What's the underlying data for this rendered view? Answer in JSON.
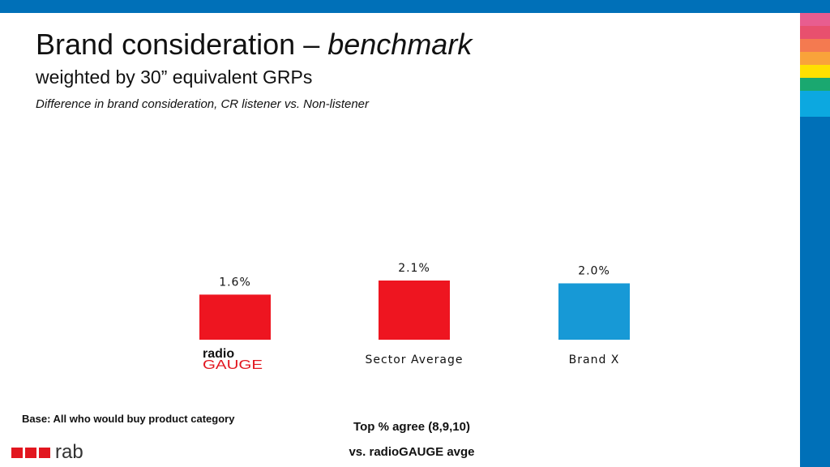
{
  "slide": {
    "title_main": "Brand consideration – ",
    "title_emph": "benchmark",
    "subtitle": "weighted by 30” equivalent GRPs",
    "description": "Difference in brand consideration, CR listener vs. Non-listener",
    "base_note": "Base: All who would buy product category",
    "footnote_1": "Top % agree (8,9,10)",
    "footnote_2": "vs. radioGAUGE avge",
    "logo_text": "rab",
    "stripe_colors": [
      "#e85d8f",
      "#e8506e",
      "#f47a50",
      "#f9a33a",
      "#ffe000",
      "#1aa870",
      "#0ca8e0"
    ]
  },
  "chart_data": {
    "type": "bar",
    "categories": [
      "radio GAUGE",
      "Sector Average",
      "Brand X"
    ],
    "values": [
      1.6,
      2.1,
      2.0
    ],
    "value_labels": [
      "1.6%",
      "2.1%",
      "2.0%"
    ],
    "colors": [
      "#ee1520",
      "#ee1520",
      "#1799d6"
    ],
    "category_logo": {
      "line1": "radio",
      "line2": "GAUGE",
      "colors": [
        "#111111",
        "#e2161f"
      ]
    },
    "title": "",
    "xlabel": "",
    "ylabel": "",
    "ylim": [
      0,
      2.1
    ],
    "grid": false,
    "legend": "none"
  }
}
